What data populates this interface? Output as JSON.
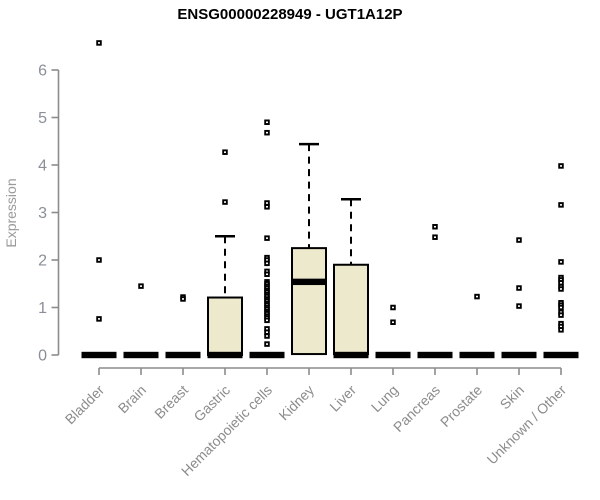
{
  "figure": {
    "title": "ENSG00000228949 - UGT1A12P"
  },
  "chart_data": {
    "type": "boxplot",
    "title": "ENSG00000228949 - UGT1A12P",
    "xlabel": "",
    "ylabel": "Expression",
    "ylim": [
      0,
      6.6
    ],
    "yticks": [
      0,
      1,
      2,
      3,
      4,
      5,
      6
    ],
    "grid": false,
    "legend": "none",
    "categories": [
      "Bladder",
      "Brain",
      "Breast",
      "Gastric",
      "Hematopoietic cells",
      "Kidney",
      "Liver",
      "Lung",
      "Pancreas",
      "Prostate",
      "Skin",
      "Unknown / Other"
    ],
    "series": [
      {
        "category": "Bladder",
        "q1": 0,
        "q3": 0,
        "median": 0,
        "whisker_low": 0,
        "whisker_high": 0,
        "outliers": [
          6.57,
          2.0,
          0.76
        ]
      },
      {
        "category": "Brain",
        "q1": 0,
        "q3": 0,
        "median": 0,
        "whisker_low": 0,
        "whisker_high": 0,
        "outliers": [
          1.45
        ]
      },
      {
        "category": "Breast",
        "q1": 0,
        "q3": 0,
        "median": 0,
        "whisker_low": 0,
        "whisker_high": 0,
        "outliers": [
          1.22,
          1.18
        ]
      },
      {
        "category": "Gastric",
        "q1": 0,
        "q3": 1.21,
        "median": 0,
        "whisker_low": 0,
        "whisker_high": 2.5,
        "outliers": [
          4.27,
          3.22
        ]
      },
      {
        "category": "Hematopoietic cells",
        "q1": 0,
        "q3": 0,
        "median": 0,
        "whisker_low": 0,
        "whisker_high": 0,
        "outliers": [
          4.9,
          4.68,
          3.2,
          3.12,
          2.46,
          2.05,
          2.0,
          1.93,
          1.76,
          1.7,
          1.54,
          1.5,
          1.45,
          1.41,
          1.36,
          1.32,
          1.27,
          1.23,
          1.18,
          1.14,
          1.09,
          1.05,
          1.0,
          0.96,
          0.91,
          0.87,
          0.82,
          0.78,
          0.73,
          0.55,
          0.48,
          0.4,
          0.23
        ]
      },
      {
        "category": "Kidney",
        "q1": 0.02,
        "q3": 2.25,
        "median": 1.54,
        "whisker_low": 0,
        "whisker_high": 4.44,
        "outliers": []
      },
      {
        "category": "Liver",
        "q1": 0.02,
        "q3": 1.9,
        "median": 0,
        "whisker_low": 0,
        "whisker_high": 3.28,
        "outliers": []
      },
      {
        "category": "Lung",
        "q1": 0,
        "q3": 0,
        "median": 0,
        "whisker_low": 0,
        "whisker_high": 0,
        "outliers": [
          1.0,
          0.69
        ]
      },
      {
        "category": "Pancreas",
        "q1": 0,
        "q3": 0,
        "median": 0,
        "whisker_low": 0,
        "whisker_high": 0,
        "outliers": [
          2.7,
          2.48
        ]
      },
      {
        "category": "Prostate",
        "q1": 0,
        "q3": 0,
        "median": 0,
        "whisker_low": 0,
        "whisker_high": 0,
        "outliers": [
          1.23
        ]
      },
      {
        "category": "Skin",
        "q1": 0,
        "q3": 0,
        "median": 0,
        "whisker_low": 0,
        "whisker_high": 0,
        "outliers": [
          2.42,
          1.41,
          1.03
        ]
      },
      {
        "category": "Unknown / Other",
        "q1": 0,
        "q3": 0,
        "median": 0,
        "whisker_low": 0,
        "whisker_high": 0,
        "outliers": [
          3.98,
          3.16,
          1.96,
          1.63,
          1.58,
          1.52,
          1.44,
          1.39,
          1.1,
          1.05,
          1.0,
          0.9,
          0.84,
          0.66,
          0.6,
          0.53
        ]
      }
    ],
    "colors": {
      "box_fill": "#EDE9CD",
      "box_stroke": "#000000",
      "median": "#000000",
      "outlier": "#000000",
      "axis": "#8C8C8C",
      "tick_label": "#8A8F98",
      "title": "#000000"
    }
  }
}
